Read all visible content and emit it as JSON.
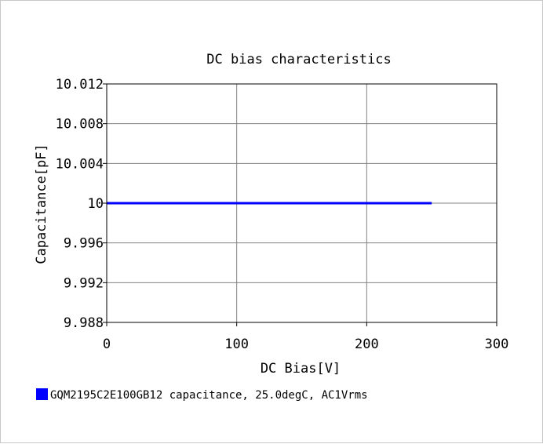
{
  "chart_data": {
    "type": "line",
    "title": "DC bias characteristics",
    "xlabel": "DC Bias[V]",
    "ylabel": "Capacitance[pF]",
    "xlim": [
      0,
      300
    ],
    "ylim": [
      9.988,
      10.012
    ],
    "x_ticks": [
      "0",
      "100",
      "200",
      "300"
    ],
    "y_ticks": [
      "10.012",
      "10.008",
      "10.004",
      "10",
      "9.996",
      "9.992",
      "9.988"
    ],
    "x_tick_values": [
      0,
      100,
      200,
      300
    ],
    "y_tick_values": [
      10.012,
      10.008,
      10.004,
      10,
      9.996,
      9.992,
      9.988
    ],
    "grid": true,
    "legend_position": "bottom-left",
    "series": [
      {
        "name": "GQM2195C2E100GB12 capacitance, 25.0degC, AC1Vrms",
        "color": "#0000ff",
        "x": [
          0,
          50,
          100,
          150,
          200,
          250
        ],
        "y": [
          10,
          10,
          10,
          10,
          10,
          10
        ]
      }
    ]
  }
}
